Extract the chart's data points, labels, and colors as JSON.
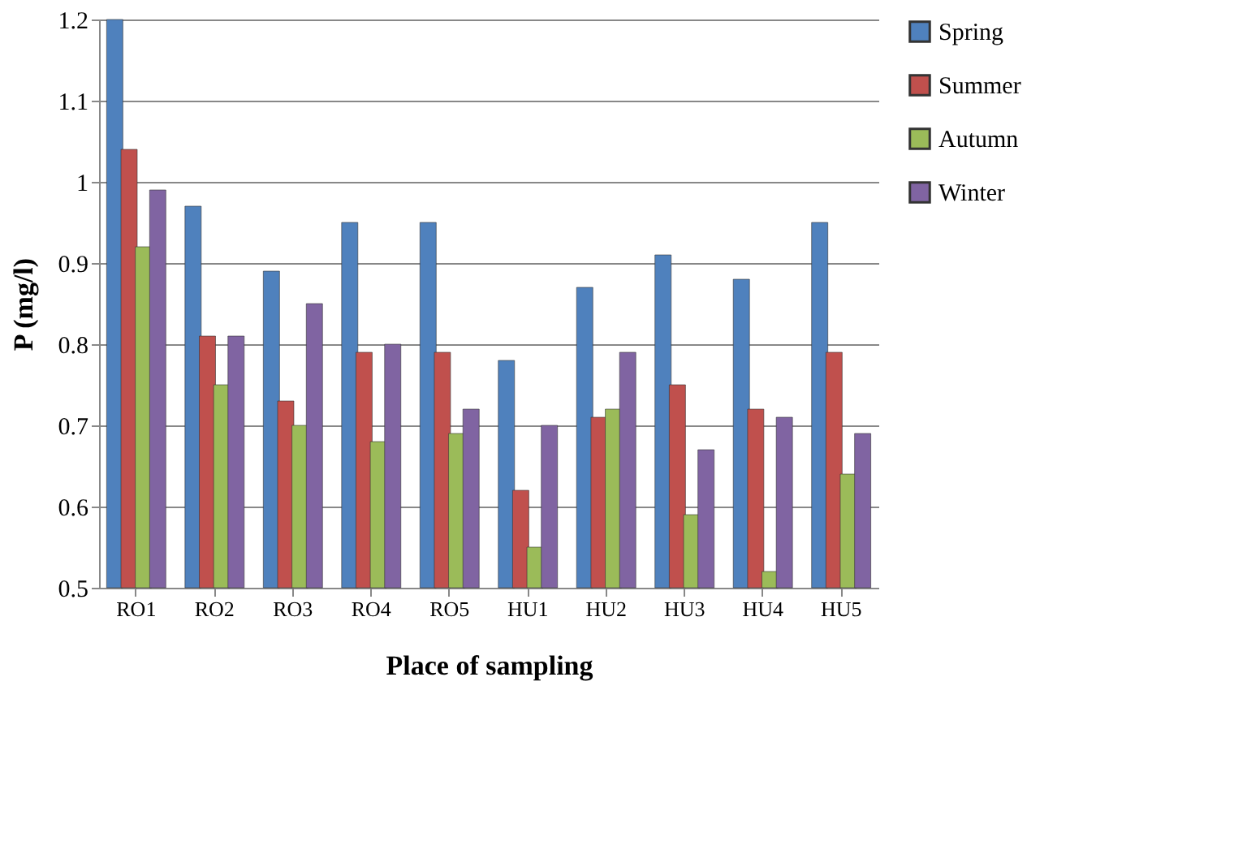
{
  "chart_data": {
    "type": "bar",
    "xlabel": "Place of sampling",
    "ylabel": "P (mg/l)",
    "categories": [
      "RO1",
      "RO2",
      "RO3",
      "RO4",
      "RO5",
      "HU1",
      "HU2",
      "HU3",
      "HU4",
      "HU5"
    ],
    "series": [
      {
        "name": "Spring",
        "color": "#4f81bd",
        "values": [
          1.2,
          0.97,
          0.89,
          0.95,
          0.95,
          0.78,
          0.87,
          0.91,
          0.88,
          0.95
        ]
      },
      {
        "name": "Summer",
        "color": "#c0504d",
        "values": [
          1.04,
          0.81,
          0.73,
          0.79,
          0.79,
          0.62,
          0.71,
          0.75,
          0.72,
          0.79
        ]
      },
      {
        "name": "Autumn",
        "color": "#9bbb59",
        "values": [
          0.92,
          0.75,
          0.7,
          0.68,
          0.69,
          0.55,
          0.72,
          0.59,
          0.52,
          0.64
        ]
      },
      {
        "name": "Winter",
        "color": "#8064a2",
        "values": [
          0.99,
          0.81,
          0.85,
          0.8,
          0.72,
          0.7,
          0.79,
          0.67,
          0.71,
          0.69
        ]
      }
    ],
    "ylim": [
      0.5,
      1.2
    ],
    "yticks": [
      0.5,
      0.6,
      0.7,
      0.8,
      0.9,
      1,
      1.1,
      1.2
    ],
    "grid": "y",
    "legend": "right"
  }
}
